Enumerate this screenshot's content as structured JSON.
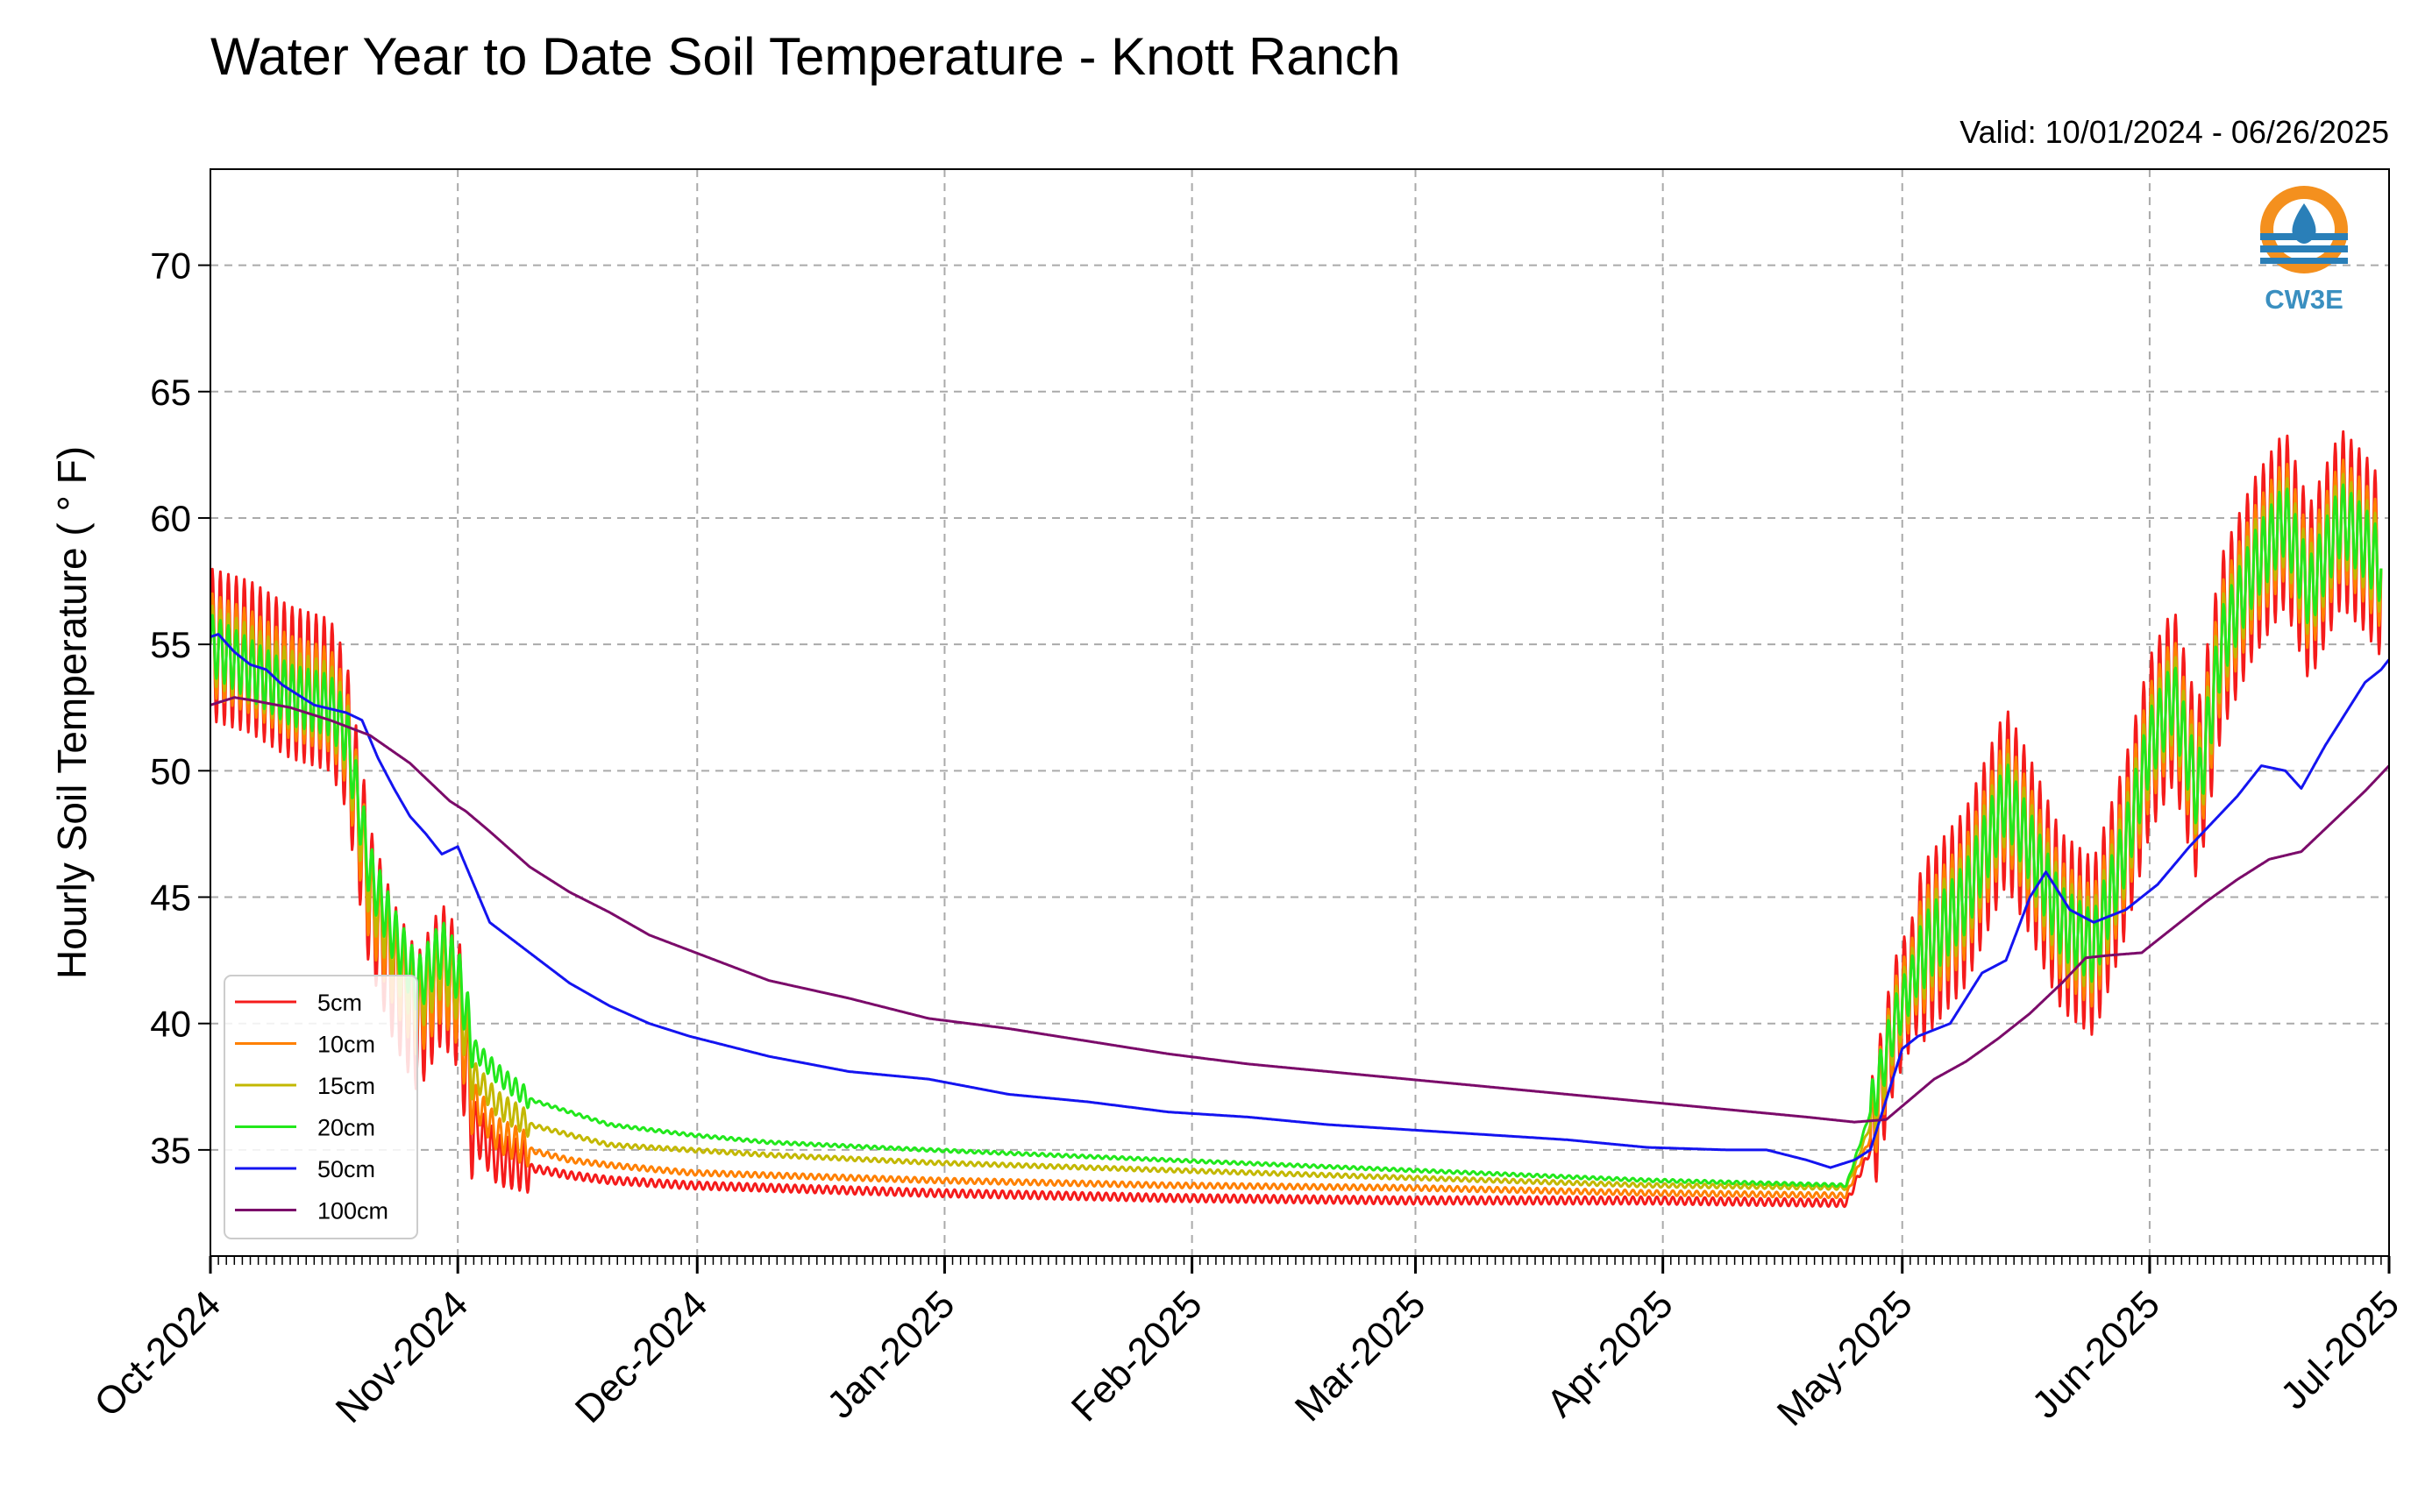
{
  "chart_data": {
    "type": "line",
    "title": "Water Year to Date Soil Temperature - Knott Ranch",
    "subtitle": "Valid: 10/01/2024 - 06/26/2025",
    "ylabel": "Hourly Soil Temperature ( ° F)",
    "xlabel": "",
    "logo_text": "CW3E",
    "x_ticks": [
      {
        "day": 0,
        "label": "Oct-2024"
      },
      {
        "day": 31,
        "label": "Nov-2024"
      },
      {
        "day": 61,
        "label": "Dec-2024"
      },
      {
        "day": 92,
        "label": "Jan-2025"
      },
      {
        "day": 123,
        "label": "Feb-2025"
      },
      {
        "day": 151,
        "label": "Mar-2025"
      },
      {
        "day": 182,
        "label": "Apr-2025"
      },
      {
        "day": 212,
        "label": "May-2025"
      },
      {
        "day": 243,
        "label": "Jun-2025"
      },
      {
        "day": 273,
        "label": "Jul-2025"
      }
    ],
    "y_ticks": [
      35,
      40,
      45,
      50,
      55,
      60,
      65,
      70
    ],
    "xlim": [
      0,
      273
    ],
    "ylim": [
      30.8,
      73.8
    ],
    "grid": true,
    "legend_position": "lower-left",
    "series": [
      {
        "name": "5cm",
        "color": "#f51b1b",
        "noise_amp": 1.25,
        "points": [
          [
            0,
            55
          ],
          [
            5,
            54.5
          ],
          [
            10,
            53.5
          ],
          [
            15,
            53
          ],
          [
            17,
            51.5
          ],
          [
            20,
            45
          ],
          [
            23,
            42
          ],
          [
            26,
            40
          ],
          [
            29,
            42
          ],
          [
            31,
            41
          ],
          [
            33,
            36
          ],
          [
            36,
            34.6
          ],
          [
            40,
            34.3
          ],
          [
            45,
            34
          ],
          [
            50,
            33.8
          ],
          [
            60,
            33.6
          ],
          [
            70,
            33.5
          ],
          [
            90,
            33.3
          ],
          [
            120,
            33.1
          ],
          [
            150,
            33
          ],
          [
            180,
            33
          ],
          [
            205,
            32.9
          ],
          [
            208,
            35
          ],
          [
            211,
            40
          ],
          [
            215,
            43
          ],
          [
            220,
            45
          ],
          [
            225,
            49
          ],
          [
            228,
            47
          ],
          [
            232,
            44
          ],
          [
            236,
            43
          ],
          [
            240,
            47
          ],
          [
            243,
            51
          ],
          [
            246,
            53
          ],
          [
            249,
            49
          ],
          [
            252,
            55
          ],
          [
            256,
            58
          ],
          [
            260,
            60
          ],
          [
            263,
            57
          ],
          [
            267,
            60
          ],
          [
            270,
            59
          ],
          [
            272,
            58
          ]
        ]
      },
      {
        "name": "10cm",
        "color": "#ff8000",
        "noise_amp": 0.85,
        "points": [
          [
            0,
            55
          ],
          [
            5,
            54.3
          ],
          [
            10,
            53.3
          ],
          [
            15,
            52.8
          ],
          [
            17,
            51.5
          ],
          [
            20,
            45
          ],
          [
            23,
            42.5
          ],
          [
            26,
            40.5
          ],
          [
            29,
            42
          ],
          [
            31,
            41
          ],
          [
            33,
            37
          ],
          [
            36,
            35.6
          ],
          [
            40,
            35
          ],
          [
            45,
            34.6
          ],
          [
            50,
            34.4
          ],
          [
            60,
            34.1
          ],
          [
            70,
            34
          ],
          [
            90,
            33.8
          ],
          [
            120,
            33.6
          ],
          [
            150,
            33.5
          ],
          [
            180,
            33.3
          ],
          [
            205,
            33.2
          ],
          [
            208,
            35.5
          ],
          [
            211,
            40
          ],
          [
            215,
            43
          ],
          [
            220,
            45
          ],
          [
            225,
            49
          ],
          [
            228,
            47
          ],
          [
            232,
            44
          ],
          [
            236,
            43
          ],
          [
            240,
            47
          ],
          [
            243,
            51
          ],
          [
            246,
            53
          ],
          [
            249,
            49
          ],
          [
            252,
            55
          ],
          [
            256,
            58
          ],
          [
            260,
            60
          ],
          [
            263,
            57
          ],
          [
            267,
            60
          ],
          [
            270,
            59
          ],
          [
            272,
            58
          ]
        ]
      },
      {
        "name": "15cm",
        "color": "#c3b800",
        "noise_amp": 0.65,
        "points": [
          [
            0,
            55
          ],
          [
            5,
            54.2
          ],
          [
            10,
            53.2
          ],
          [
            15,
            52.7
          ],
          [
            17,
            51.5
          ],
          [
            20,
            45.5
          ],
          [
            23,
            43
          ],
          [
            26,
            41
          ],
          [
            29,
            42.5
          ],
          [
            31,
            41.5
          ],
          [
            33,
            38
          ],
          [
            36,
            36.8
          ],
          [
            40,
            36
          ],
          [
            45,
            35.6
          ],
          [
            50,
            35.2
          ],
          [
            60,
            35
          ],
          [
            70,
            34.8
          ],
          [
            90,
            34.5
          ],
          [
            120,
            34.2
          ],
          [
            150,
            33.9
          ],
          [
            180,
            33.6
          ],
          [
            205,
            33.5
          ],
          [
            208,
            36
          ],
          [
            211,
            40
          ],
          [
            215,
            43
          ],
          [
            220,
            45
          ],
          [
            225,
            49
          ],
          [
            228,
            47
          ],
          [
            232,
            44
          ],
          [
            236,
            43
          ],
          [
            240,
            47
          ],
          [
            243,
            51
          ],
          [
            246,
            53
          ],
          [
            249,
            49
          ],
          [
            252,
            55
          ],
          [
            256,
            58
          ],
          [
            260,
            60
          ],
          [
            263,
            57
          ],
          [
            267,
            60
          ],
          [
            270,
            59
          ],
          [
            272,
            58
          ]
        ]
      },
      {
        "name": "20cm",
        "color": "#22e81c",
        "noise_amp": 0.5,
        "points": [
          [
            0,
            55
          ],
          [
            5,
            54
          ],
          [
            10,
            53
          ],
          [
            15,
            52.6
          ],
          [
            17,
            51.5
          ],
          [
            20,
            46
          ],
          [
            23,
            43.5
          ],
          [
            26,
            41.5
          ],
          [
            29,
            43
          ],
          [
            31,
            42
          ],
          [
            33,
            39
          ],
          [
            36,
            38
          ],
          [
            40,
            37
          ],
          [
            45,
            36.5
          ],
          [
            50,
            36
          ],
          [
            60,
            35.6
          ],
          [
            70,
            35.3
          ],
          [
            90,
            35
          ],
          [
            120,
            34.6
          ],
          [
            150,
            34.2
          ],
          [
            180,
            33.8
          ],
          [
            205,
            33.6
          ],
          [
            208,
            36.5
          ],
          [
            211,
            40
          ],
          [
            215,
            43
          ],
          [
            220,
            45
          ],
          [
            225,
            49
          ],
          [
            228,
            47
          ],
          [
            232,
            44
          ],
          [
            236,
            43
          ],
          [
            240,
            47
          ],
          [
            243,
            51
          ],
          [
            246,
            53
          ],
          [
            249,
            49
          ],
          [
            252,
            55
          ],
          [
            256,
            58
          ],
          [
            260,
            60
          ],
          [
            263,
            57
          ],
          [
            267,
            60
          ],
          [
            270,
            59
          ],
          [
            272,
            58
          ]
        ]
      },
      {
        "name": "50cm",
        "color": "#1414f0",
        "noise_amp": 0,
        "points": [
          [
            0,
            55.3
          ],
          [
            1,
            55.4
          ],
          [
            3,
            54.7
          ],
          [
            5,
            54.2
          ],
          [
            7,
            54
          ],
          [
            9,
            53.4
          ],
          [
            11,
            53
          ],
          [
            13,
            52.6
          ],
          [
            17,
            52.3
          ],
          [
            19,
            52
          ],
          [
            21,
            50.5
          ],
          [
            23,
            49.3
          ],
          [
            25,
            48.2
          ],
          [
            27,
            47.5
          ],
          [
            29,
            46.7
          ],
          [
            31,
            47
          ],
          [
            33,
            45.5
          ],
          [
            35,
            44
          ],
          [
            40,
            42.8
          ],
          [
            45,
            41.6
          ],
          [
            50,
            40.7
          ],
          [
            55,
            40
          ],
          [
            60,
            39.5
          ],
          [
            70,
            38.7
          ],
          [
            80,
            38.1
          ],
          [
            90,
            37.8
          ],
          [
            100,
            37.2
          ],
          [
            110,
            36.9
          ],
          [
            120,
            36.5
          ],
          [
            130,
            36.3
          ],
          [
            140,
            36
          ],
          [
            150,
            35.8
          ],
          [
            160,
            35.6
          ],
          [
            170,
            35.4
          ],
          [
            180,
            35.1
          ],
          [
            190,
            35
          ],
          [
            195,
            35
          ],
          [
            200,
            34.6
          ],
          [
            203,
            34.3
          ],
          [
            206,
            34.6
          ],
          [
            208,
            35
          ],
          [
            210,
            37
          ],
          [
            212,
            39
          ],
          [
            214,
            39.5
          ],
          [
            218,
            40
          ],
          [
            222,
            42
          ],
          [
            225,
            42.5
          ],
          [
            228,
            45
          ],
          [
            230,
            46
          ],
          [
            233,
            44.5
          ],
          [
            236,
            44
          ],
          [
            240,
            44.5
          ],
          [
            244,
            45.5
          ],
          [
            248,
            47
          ],
          [
            251,
            48
          ],
          [
            254,
            49
          ],
          [
            257,
            50.2
          ],
          [
            260,
            50
          ],
          [
            262,
            49.3
          ],
          [
            265,
            51
          ],
          [
            268,
            52.5
          ],
          [
            270,
            53.5
          ],
          [
            272,
            54
          ],
          [
            273,
            54.4
          ]
        ]
      },
      {
        "name": "100cm",
        "color": "#7b0b6a",
        "noise_amp": 0,
        "points": [
          [
            0,
            52.6
          ],
          [
            3,
            52.9
          ],
          [
            5,
            52.8
          ],
          [
            10,
            52.5
          ],
          [
            15,
            52
          ],
          [
            20,
            51.4
          ],
          [
            25,
            50.3
          ],
          [
            30,
            48.8
          ],
          [
            32,
            48.4
          ],
          [
            35,
            47.6
          ],
          [
            40,
            46.2
          ],
          [
            45,
            45.2
          ],
          [
            50,
            44.4
          ],
          [
            55,
            43.5
          ],
          [
            60,
            42.9
          ],
          [
            70,
            41.7
          ],
          [
            80,
            41
          ],
          [
            90,
            40.2
          ],
          [
            100,
            39.8
          ],
          [
            110,
            39.3
          ],
          [
            120,
            38.8
          ],
          [
            130,
            38.4
          ],
          [
            140,
            38.1
          ],
          [
            150,
            37.8
          ],
          [
            160,
            37.5
          ],
          [
            170,
            37.2
          ],
          [
            180,
            36.9
          ],
          [
            190,
            36.6
          ],
          [
            200,
            36.3
          ],
          [
            206,
            36.1
          ],
          [
            210,
            36.2
          ],
          [
            213,
            37
          ],
          [
            216,
            37.8
          ],
          [
            220,
            38.5
          ],
          [
            224,
            39.4
          ],
          [
            228,
            40.4
          ],
          [
            232,
            41.6
          ],
          [
            235,
            42.6
          ],
          [
            238,
            42.7
          ],
          [
            242,
            42.8
          ],
          [
            246,
            43.8
          ],
          [
            250,
            44.8
          ],
          [
            254,
            45.7
          ],
          [
            258,
            46.5
          ],
          [
            262,
            46.8
          ],
          [
            266,
            48
          ],
          [
            270,
            49.2
          ],
          [
            273,
            50.2
          ]
        ]
      }
    ]
  }
}
